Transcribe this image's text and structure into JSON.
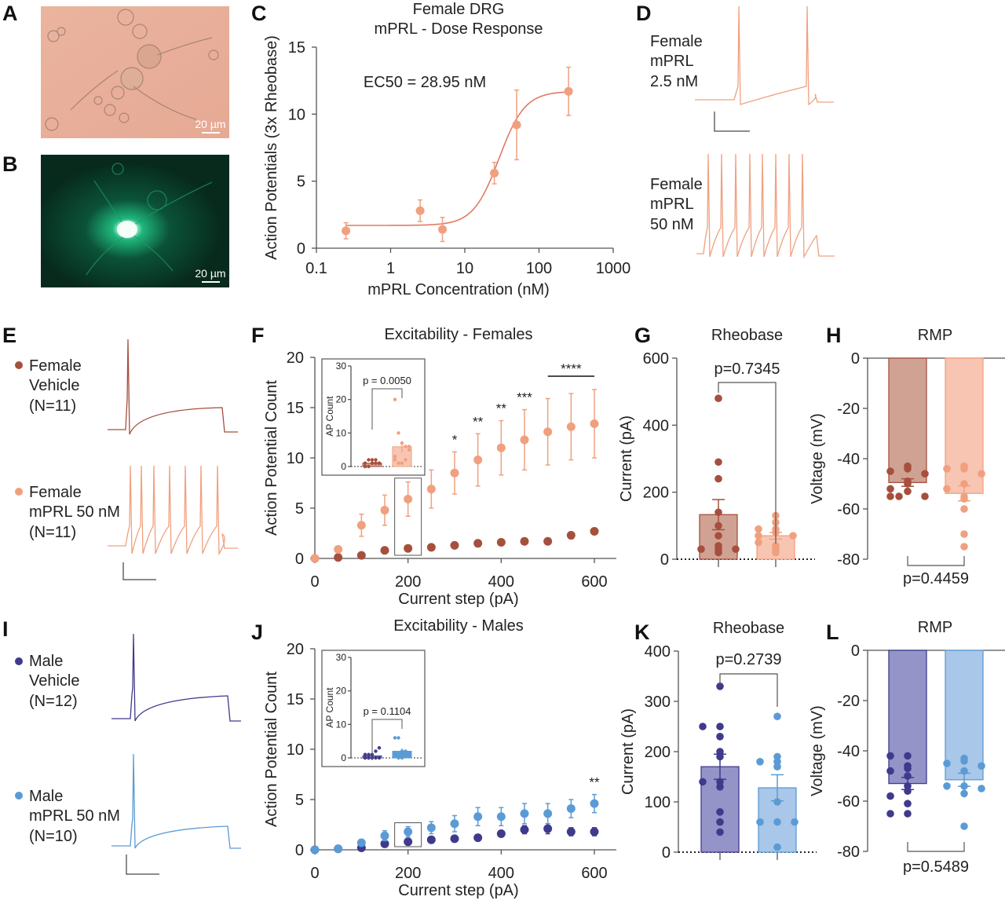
{
  "colors": {
    "female_vehicle": "#a5503d",
    "female_mprl": "#f0a07f",
    "female_vehicle_bar": "#cfa294",
    "female_mprl_bar": "#f7c5b1",
    "male_vehicle": "#3f3a8c",
    "male_mprl": "#5b9bd5",
    "male_vehicle_bar": "#9494c9",
    "male_mprl_bar": "#a9c7e8",
    "axis": "#555555"
  },
  "panels": {
    "A": {
      "letter": "A",
      "scale_bar": "20 µm"
    },
    "B": {
      "letter": "B",
      "scale_bar": "20 µm"
    },
    "C": {
      "letter": "C"
    },
    "D": {
      "letter": "D",
      "trace1_label": [
        "Female",
        "mPRL",
        "2.5 nM"
      ],
      "trace2_label": [
        "Female",
        "mPRL",
        "50 nM"
      ]
    },
    "E": {
      "letter": "E",
      "legend1": [
        "Female",
        "Vehicle",
        "(N=11)"
      ],
      "legend2": [
        "Female",
        "mPRL 50 nM",
        "(N=11)"
      ]
    },
    "F": {
      "letter": "F"
    },
    "G": {
      "letter": "G"
    },
    "H": {
      "letter": "H"
    },
    "I": {
      "letter": "I",
      "legend1": [
        "Male",
        "Vehicle",
        "(N=12)"
      ],
      "legend2": [
        "Male",
        "mPRL 50 nM",
        "(N=10)"
      ]
    },
    "J": {
      "letter": "J"
    },
    "K": {
      "letter": "K"
    },
    "L": {
      "letter": "L"
    }
  },
  "chart_data": [
    {
      "panel": "C",
      "type": "scatter",
      "title_lines": [
        "Female DRG",
        "mPRL - Dose Response"
      ],
      "xlabel": "mPRL Concentration (nM)",
      "ylabel": "Action Potentials (3x Rheobase)",
      "x_scale": "log",
      "xlim": [
        0.1,
        1000
      ],
      "ylim": [
        0,
        15
      ],
      "x_ticks": [
        "0.1",
        "1",
        "10",
        "100",
        "1000"
      ],
      "y_ticks": [
        "0",
        "5",
        "10",
        "15"
      ],
      "annotation": "EC50 = 28.95 nM",
      "fit": {
        "model": "sigmoidal dose-response",
        "bottom": 1.7,
        "top": 11.7,
        "ec50": 28.95,
        "hill": 2.5
      },
      "series": [
        {
          "color": "#f0a07f",
          "x": [
            0.25,
            2.5,
            5,
            25,
            50,
            250
          ],
          "y": [
            1.3,
            2.8,
            1.4,
            5.6,
            9.2,
            11.7
          ],
          "err": [
            0.6,
            0.8,
            0.9,
            0.8,
            2.6,
            1.8
          ]
        }
      ]
    },
    {
      "panel": "F",
      "type": "scatter",
      "title": "Excitability - Females",
      "xlabel": "Current step (pA)",
      "ylabel": "Action Potential Count",
      "xlim": [
        0,
        650
      ],
      "ylim": [
        0,
        20
      ],
      "x_ticks": [
        "0",
        "200",
        "400",
        "600"
      ],
      "y_ticks": [
        "0",
        "5",
        "10",
        "15",
        "20"
      ],
      "highlight_x": 200,
      "series": [
        {
          "color": "#a5503d",
          "x": [
            0,
            50,
            100,
            150,
            200,
            250,
            300,
            350,
            400,
            450,
            500,
            550,
            600
          ],
          "y": [
            0,
            0.1,
            0.3,
            0.8,
            1.0,
            1.1,
            1.3,
            1.5,
            1.6,
            1.7,
            1.7,
            2.3,
            2.7
          ],
          "err": [
            0,
            0,
            0,
            0,
            0,
            0,
            0,
            0,
            0,
            0,
            0,
            0.3,
            0.3
          ]
        },
        {
          "color": "#f0a07f",
          "x": [
            0,
            50,
            100,
            150,
            200,
            250,
            300,
            350,
            400,
            450,
            500,
            550,
            600
          ],
          "y": [
            0,
            0.9,
            3.3,
            4.8,
            5.9,
            6.9,
            8.5,
            9.8,
            11.0,
            11.8,
            12.6,
            13.1,
            13.4
          ],
          "err": [
            0,
            0,
            1.1,
            1.5,
            1.7,
            1.9,
            2.1,
            2.6,
            2.7,
            3.0,
            3.3,
            3.3,
            3.4
          ]
        }
      ],
      "significance": [
        {
          "x": 300,
          "label": "*"
        },
        {
          "x": 350,
          "label": "**"
        },
        {
          "x": 400,
          "label": "**"
        },
        {
          "x": 450,
          "label": "***"
        },
        {
          "x_range": [
            500,
            600
          ],
          "label": "****"
        }
      ],
      "inset": {
        "ylabel": "AP Count",
        "ylim": [
          0,
          30
        ],
        "y_ticks": [
          "0",
          "10",
          "20",
          "30"
        ],
        "p_label": "p = 0.0050",
        "groups": [
          {
            "color": "#a5503d",
            "bar_color": "#cfa294",
            "mean": 1.0,
            "sem": 0.3,
            "values": [
              0,
              0,
              1,
              1,
              1,
              1,
              2,
              2,
              2,
              1,
              0
            ]
          },
          {
            "color": "#f0a07f",
            "bar_color": "#f7c5b1",
            "mean": 5.9,
            "sem": 1.7,
            "values": [
              20,
              10,
              7,
              6,
              5,
              2,
              1,
              1,
              2,
              6,
              3
            ]
          }
        ]
      }
    },
    {
      "panel": "G",
      "type": "bar",
      "title": "Rheobase",
      "ylabel": "Current (pA)",
      "ylim": [
        0,
        600
      ],
      "y_ticks": [
        "0",
        "200",
        "400",
        "600"
      ],
      "p_label": "p=0.7345",
      "groups": [
        {
          "color": "#a5503d",
          "bar_color": "#cfa294",
          "mean": 133,
          "sem": 45,
          "values": [
            480,
            290,
            240,
            140,
            100,
            70,
            40,
            20,
            30,
            30,
            30
          ]
        },
        {
          "color": "#f0a07f",
          "bar_color": "#f7c5b1",
          "mean": 70,
          "sem": 10,
          "values": [
            130,
            110,
            90,
            80,
            70,
            70,
            40,
            30,
            50,
            20,
            90
          ]
        }
      ]
    },
    {
      "panel": "H",
      "type": "bar",
      "title": "RMP",
      "ylabel": "Voltage (mV)",
      "ylim": [
        -80,
        0
      ],
      "y_ticks": [
        "0",
        "-20",
        "-40",
        "-60",
        "-80"
      ],
      "p_label": "p=0.4459",
      "groups": [
        {
          "color": "#a5503d",
          "bar_color": "#cfa294",
          "mean": -49.5,
          "sem": 1.5,
          "values": [
            -43,
            -44,
            -45,
            -46,
            -49,
            -50,
            -52,
            -53,
            -55,
            -55,
            -55
          ]
        },
        {
          "color": "#f0a07f",
          "bar_color": "#f7c5b1",
          "mean": -53.8,
          "sem": 3.0,
          "values": [
            -43,
            -44,
            -44,
            -46,
            -50,
            -52,
            -55,
            -56,
            -60,
            -70,
            -75
          ]
        }
      ]
    },
    {
      "panel": "J",
      "type": "scatter",
      "title": "Excitability - Males",
      "xlabel": "Current step (pA)",
      "ylabel": "Action Potential Count",
      "xlim": [
        0,
        650
      ],
      "ylim": [
        0,
        20
      ],
      "x_ticks": [
        "0",
        "200",
        "400",
        "600"
      ],
      "y_ticks": [
        "0",
        "5",
        "10",
        "15",
        "20"
      ],
      "highlight_x": 200,
      "series": [
        {
          "color": "#3f3a8c",
          "x": [
            0,
            50,
            100,
            150,
            200,
            250,
            300,
            350,
            400,
            450,
            500,
            550,
            600
          ],
          "y": [
            0,
            0.1,
            0.2,
            0.6,
            0.8,
            1.0,
            1.1,
            1.2,
            1.6,
            2.0,
            2.1,
            1.8,
            1.8
          ],
          "err": [
            0,
            0,
            0,
            0,
            0,
            0,
            0,
            0,
            0,
            0.4,
            0.5,
            0.4,
            0.4
          ]
        },
        {
          "color": "#5b9bd5",
          "x": [
            0,
            50,
            100,
            150,
            200,
            250,
            300,
            350,
            400,
            450,
            500,
            550,
            600
          ],
          "y": [
            0,
            0.1,
            0.7,
            1.4,
            1.8,
            2.2,
            2.6,
            3.3,
            3.3,
            3.6,
            3.6,
            4.1,
            4.6
          ],
          "err": [
            0,
            0,
            0.3,
            0.5,
            0.5,
            0.6,
            0.8,
            0.9,
            0.9,
            1.0,
            1.0,
            0.9,
            0.9
          ]
        }
      ],
      "significance": [
        {
          "x": 600,
          "label": "**"
        }
      ],
      "inset": {
        "ylabel": "AP Count",
        "ylim": [
          0,
          30
        ],
        "y_ticks": [
          "0",
          "10",
          "20",
          "30"
        ],
        "p_label": "p = 0.1104",
        "groups": [
          {
            "color": "#3f3a8c",
            "bar_color": "#9494c9",
            "mean": 0.6,
            "sem": 0.3,
            "values": [
              0,
              0,
              0,
              0,
              0,
              1,
              1,
              1,
              2,
              3,
              0,
              0
            ]
          },
          {
            "color": "#5b9bd5",
            "bar_color": "#5b9bd5",
            "mean": 2.0,
            "sem": 0.8,
            "values": [
              6,
              6,
              2,
              2,
              1,
              1,
              0,
              0,
              1,
              1
            ]
          }
        ]
      }
    },
    {
      "panel": "K",
      "type": "bar",
      "title": "Rheobase",
      "ylabel": "Current (pA)",
      "ylim": [
        0,
        400
      ],
      "y_ticks": [
        "0",
        "100",
        "200",
        "300",
        "400"
      ],
      "p_label": "p=0.2739",
      "groups": [
        {
          "color": "#3f3a8c",
          "bar_color": "#9494c9",
          "mean": 170,
          "sem": 25,
          "values": [
            330,
            250,
            250,
            230,
            200,
            190,
            140,
            140,
            130,
            80,
            60,
            40
          ]
        },
        {
          "color": "#5b9bd5",
          "bar_color": "#a9c7e8",
          "mean": 128,
          "sem": 26,
          "values": [
            270,
            190,
            180,
            180,
            170,
            100,
            60,
            60,
            60,
            10
          ]
        }
      ]
    },
    {
      "panel": "L",
      "type": "bar",
      "title": "RMP",
      "ylabel": "Voltage (mV)",
      "ylim": [
        -80,
        0
      ],
      "y_ticks": [
        "0",
        "-20",
        "-40",
        "-60",
        "-80"
      ],
      "p_label": "p=0.5489",
      "groups": [
        {
          "color": "#3f3a8c",
          "bar_color": "#9494c9",
          "mean": -53,
          "sem": 2.4,
          "values": [
            -42,
            -42,
            -46,
            -47,
            -48,
            -50,
            -54,
            -56,
            -58,
            -61,
            -65,
            -65
          ]
        },
        {
          "color": "#5b9bd5",
          "bar_color": "#a9c7e8",
          "mean": -51.5,
          "sem": 2.6,
          "values": [
            -43,
            -44,
            -45,
            -46,
            -48,
            -54,
            -54,
            -55,
            -57,
            -70
          ]
        }
      ]
    }
  ]
}
